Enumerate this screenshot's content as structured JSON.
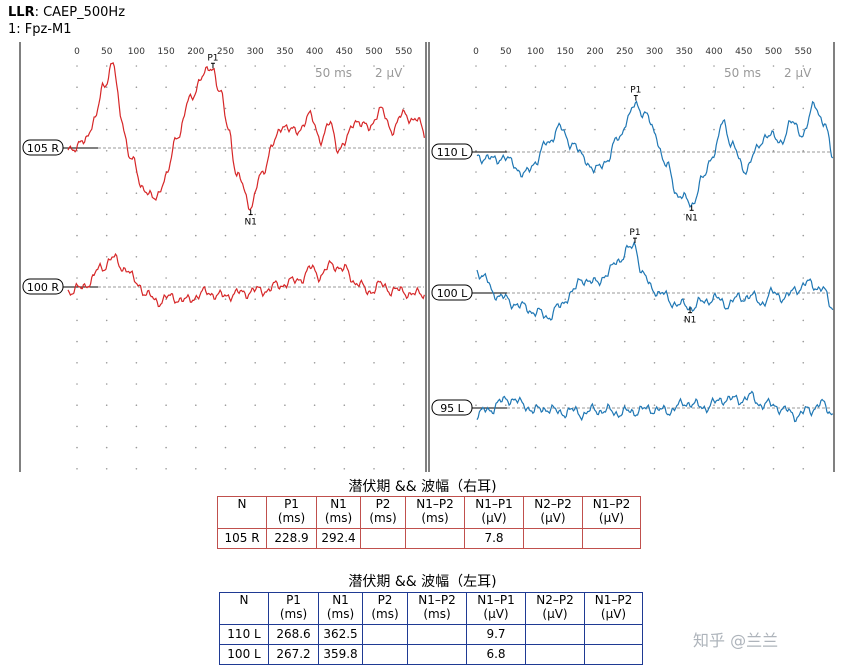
{
  "header": {
    "bold": "LLR",
    "title": ": CAEP_500Hz",
    "channel": "1: Fpz-M1"
  },
  "chart_data": [
    {
      "type": "line",
      "xticks": [
        "0",
        "50",
        "100",
        "150",
        "200",
        "250",
        "300",
        "350",
        "400",
        "450",
        "500",
        "550"
      ],
      "scale_ms": "50 ms",
      "scale_uv": "2 µV",
      "series": [
        {
          "name": "105 R",
          "color": "#d62728",
          "peaks": [
            {
              "label": "P1",
              "ms": 228.9
            },
            {
              "label": "N1",
              "ms": 292.4
            }
          ]
        },
        {
          "name": "100 R",
          "color": "#d62728",
          "peaks": []
        }
      ]
    },
    {
      "type": "line",
      "xticks": [
        "0",
        "50",
        "100",
        "150",
        "200",
        "250",
        "300",
        "350",
        "400",
        "450",
        "500",
        "550"
      ],
      "scale_ms": "50 ms",
      "scale_uv": "2 µV",
      "series": [
        {
          "name": "110 L",
          "color": "#1f77b4",
          "peaks": [
            {
              "label": "P1",
              "ms": 268.6
            },
            {
              "label": "N1",
              "ms": 362.5
            }
          ]
        },
        {
          "name": "100 L",
          "color": "#1f77b4",
          "peaks": [
            {
              "label": "P1",
              "ms": 267.2
            },
            {
              "label": "N1",
              "ms": 359.8
            }
          ]
        },
        {
          "name": "95 L",
          "color": "#1f77b4",
          "peaks": []
        }
      ]
    }
  ],
  "tables": {
    "right": {
      "title": "潜伏期  && 波幅（右耳)",
      "headers": [
        "N",
        "P1\n(ms)",
        "N1\n(ms)",
        "P2\n(ms)",
        "N1–P2\n(ms)",
        "N1–P1\n(µV)",
        "N2–P2\n(µV)",
        "N1–P2\n(µV)"
      ],
      "rows": [
        [
          "105 R",
          "228.9",
          "292.4",
          "",
          "",
          "7.8",
          "",
          ""
        ]
      ]
    },
    "left": {
      "title": "潜伏期  && 波幅（左耳)",
      "headers": [
        "N",
        "P1\n(ms)",
        "N1\n(ms)",
        "P2\n(ms)",
        "N1–P2\n(ms)",
        "N1–P1\n(µV)",
        "N2–P2\n(µV)",
        "N1–P2\n(µV)"
      ],
      "rows": [
        [
          "110 L",
          "268.6",
          "362.5",
          "",
          "",
          "9.7",
          "",
          ""
        ],
        [
          "100 L",
          "267.2",
          "359.8",
          "",
          "",
          "6.8",
          "",
          ""
        ]
      ]
    }
  },
  "watermark": "知乎 @兰兰"
}
